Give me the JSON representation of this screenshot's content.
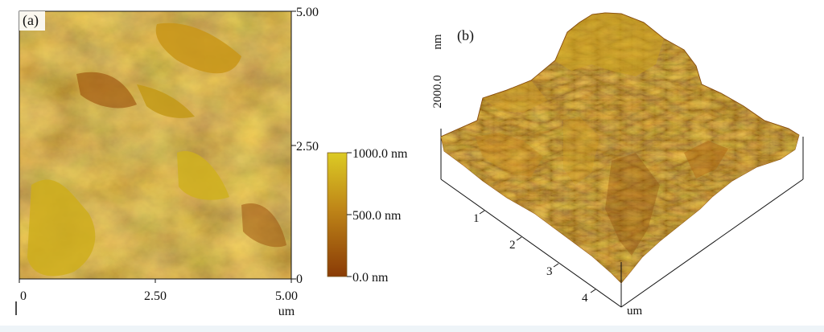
{
  "panel_a": {
    "label": "(a)",
    "x_ticks": [
      "0",
      "2.50",
      "5.00"
    ],
    "x_unit": "um",
    "y_ticks": [
      "5.00",
      "2.50",
      "0"
    ],
    "colorbar": {
      "top_label": "1000.0 nm",
      "mid_label": "500.0 nm",
      "bottom_label": "0.0 nm",
      "colors": [
        "#d9c51f",
        "#b9800f",
        "#8c3f06"
      ]
    }
  },
  "panel_b": {
    "label": "(b)",
    "z_label": "2000.0",
    "z_unit": "nm",
    "axis_ticks": [
      "1",
      "2",
      "3",
      "4"
    ],
    "axis_unit": "um"
  }
}
